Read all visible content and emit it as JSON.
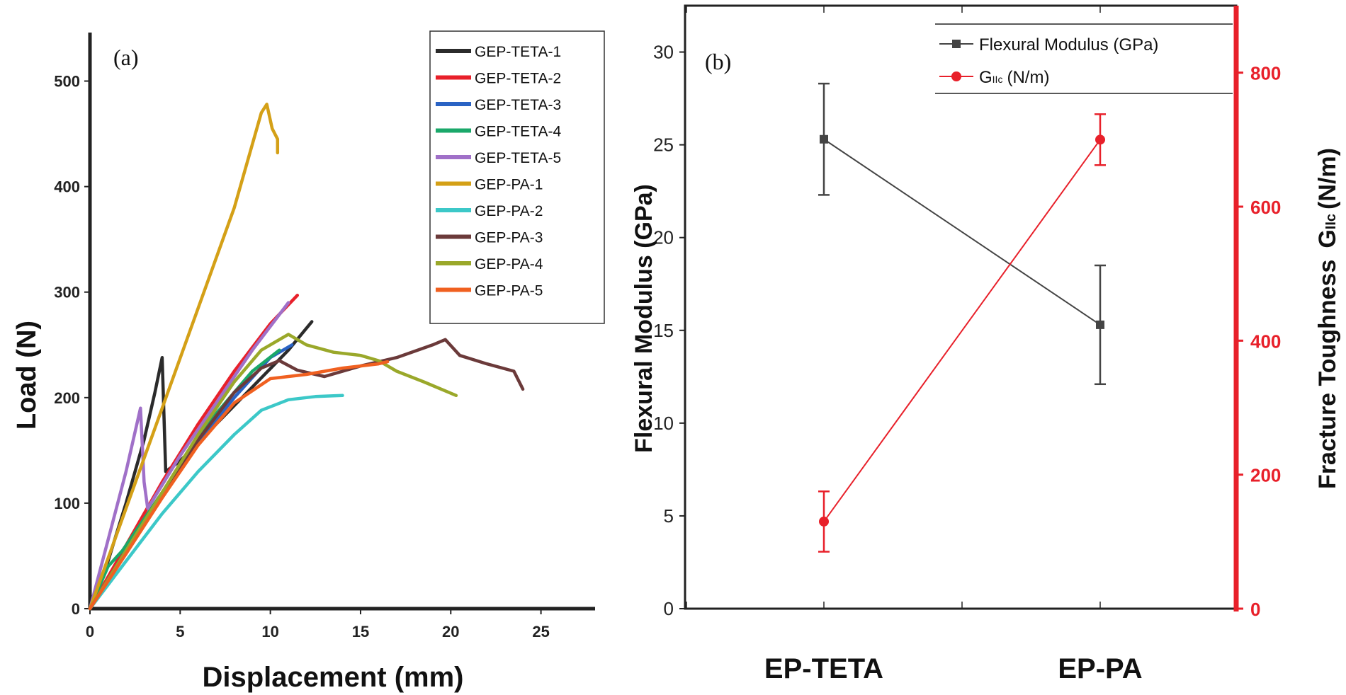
{
  "chart_data": [
    {
      "panel_label": "(a)",
      "type": "line",
      "xlabel": "Displacement (mm)",
      "ylabel": "Load (N)",
      "xlim": [
        0,
        28
      ],
      "ylim": [
        0,
        550
      ],
      "x_ticks": [
        0,
        5,
        10,
        15,
        20,
        25
      ],
      "y_ticks": [
        0,
        100,
        200,
        300,
        400,
        500
      ],
      "legend_position": "top-right",
      "series": [
        {
          "name": "GEP-TETA-1",
          "color": "#2b2b2b",
          "points": [
            [
              0,
              0
            ],
            [
              1,
              45
            ],
            [
              2,
              100
            ],
            [
              3,
              160
            ],
            [
              3.6,
              205
            ],
            [
              4.0,
              238
            ],
            [
              4.2,
              130
            ],
            [
              5,
              140
            ],
            [
              7,
              175
            ],
            [
              9,
              210
            ],
            [
              11,
              245
            ],
            [
              12.3,
              272
            ]
          ]
        },
        {
          "name": "GEP-TETA-2",
          "color": "#e8202a",
          "points": [
            [
              0,
              0
            ],
            [
              2,
              60
            ],
            [
              4,
              120
            ],
            [
              6,
              175
            ],
            [
              8,
              225
            ],
            [
              10,
              270
            ],
            [
              11.5,
              297
            ]
          ]
        },
        {
          "name": "GEP-TETA-3",
          "color": "#2a63c4",
          "points": [
            [
              0,
              0
            ],
            [
              2,
              55
            ],
            [
              4,
              108
            ],
            [
              6,
              158
            ],
            [
              8,
              200
            ],
            [
              10,
              238
            ],
            [
              11.2,
              250
            ]
          ]
        },
        {
          "name": "GEP-TETA-4",
          "color": "#1aa86a",
          "points": [
            [
              0,
              0
            ],
            [
              1,
              40
            ],
            [
              1.8,
              55
            ],
            [
              3,
              85
            ],
            [
              5,
              135
            ],
            [
              7,
              185
            ],
            [
              9,
              225
            ],
            [
              10.5,
              245
            ]
          ]
        },
        {
          "name": "GEP-TETA-5",
          "color": "#a070c8",
          "points": [
            [
              0,
              0
            ],
            [
              1,
              65
            ],
            [
              2,
              130
            ],
            [
              2.8,
              190
            ],
            [
              3,
              120
            ],
            [
              3.2,
              95
            ],
            [
              5,
              145
            ],
            [
              7,
              195
            ],
            [
              9,
              245
            ],
            [
              11,
              290
            ]
          ]
        },
        {
          "name": "GEP-PA-1",
          "color": "#d4a017",
          "points": [
            [
              0,
              0
            ],
            [
              2,
              95
            ],
            [
              4,
              190
            ],
            [
              6,
              285
            ],
            [
              8,
              380
            ],
            [
              9.5,
              470
            ],
            [
              9.8,
              478
            ],
            [
              10.1,
              455
            ],
            [
              10.4,
              445
            ],
            [
              10.4,
              432
            ]
          ]
        },
        {
          "name": "GEP-PA-2",
          "color": "#3cc8c8",
          "points": [
            [
              0,
              0
            ],
            [
              2,
              45
            ],
            [
              4,
              90
            ],
            [
              6,
              130
            ],
            [
              8,
              165
            ],
            [
              9.5,
              188
            ],
            [
              11,
              198
            ],
            [
              12.5,
              201
            ],
            [
              14,
              202
            ]
          ]
        },
        {
          "name": "GEP-PA-3",
          "color": "#6b3a3a",
          "points": [
            [
              0,
              0
            ],
            [
              2,
              55
            ],
            [
              4,
              110
            ],
            [
              6,
              160
            ],
            [
              8,
              205
            ],
            [
              9.5,
              228
            ],
            [
              10.5,
              235
            ],
            [
              11.5,
              226
            ],
            [
              13,
              220
            ],
            [
              15,
              230
            ],
            [
              17,
              238
            ],
            [
              19,
              250
            ],
            [
              19.7,
              255
            ],
            [
              20.5,
              240
            ],
            [
              22,
              232
            ],
            [
              23.5,
              225
            ],
            [
              24,
              208
            ]
          ]
        },
        {
          "name": "GEP-PA-4",
          "color": "#9aa82a",
          "points": [
            [
              0,
              0
            ],
            [
              2,
              55
            ],
            [
              4,
              110
            ],
            [
              6,
              165
            ],
            [
              8,
              215
            ],
            [
              9.5,
              245
            ],
            [
              11,
              260
            ],
            [
              12,
              250
            ],
            [
              13.5,
              243
            ],
            [
              15,
              240
            ],
            [
              16,
              235
            ],
            [
              17,
              225
            ],
            [
              18.5,
              215
            ],
            [
              20.3,
              202
            ]
          ]
        },
        {
          "name": "GEP-PA-5",
          "color": "#f06020",
          "points": [
            [
              0,
              0
            ],
            [
              2,
              52
            ],
            [
              4,
              105
            ],
            [
              6,
              155
            ],
            [
              8,
              195
            ],
            [
              10,
              218
            ],
            [
              12,
              222
            ],
            [
              14,
              228
            ],
            [
              16,
              232
            ],
            [
              16.5,
              234
            ]
          ]
        }
      ]
    },
    {
      "panel_label": "(b)",
      "type": "line",
      "categories": [
        "EP-TETA",
        "EP-PA"
      ],
      "ylabel": "Flexural Modulus (GPa)",
      "y2label": "Fracture Toughness",
      "y2label_sym": "G",
      "y2label_sub": "IIc",
      "y2label_unit": "(N/m)",
      "ylim": [
        0,
        32.5
      ],
      "y_ticks": [
        0,
        5,
        10,
        15,
        20,
        25,
        30
      ],
      "y2lim": [
        0,
        900
      ],
      "y2_ticks": [
        0,
        200,
        400,
        600,
        800
      ],
      "legend_position": "top-right",
      "series": [
        {
          "name": "Flexural Modulus (GPa)",
          "axis": "left",
          "color": "#444444",
          "marker": "square",
          "values": [
            25.3,
            15.3
          ],
          "errors": [
            3.0,
            3.2
          ]
        },
        {
          "name_sym": "G",
          "name_sub": "IIc",
          "name_unit": "(N/m)",
          "axis": "right",
          "color": "#e8202a",
          "marker": "circle",
          "values": [
            130,
            700
          ],
          "errors": [
            45,
            38
          ]
        }
      ]
    }
  ]
}
